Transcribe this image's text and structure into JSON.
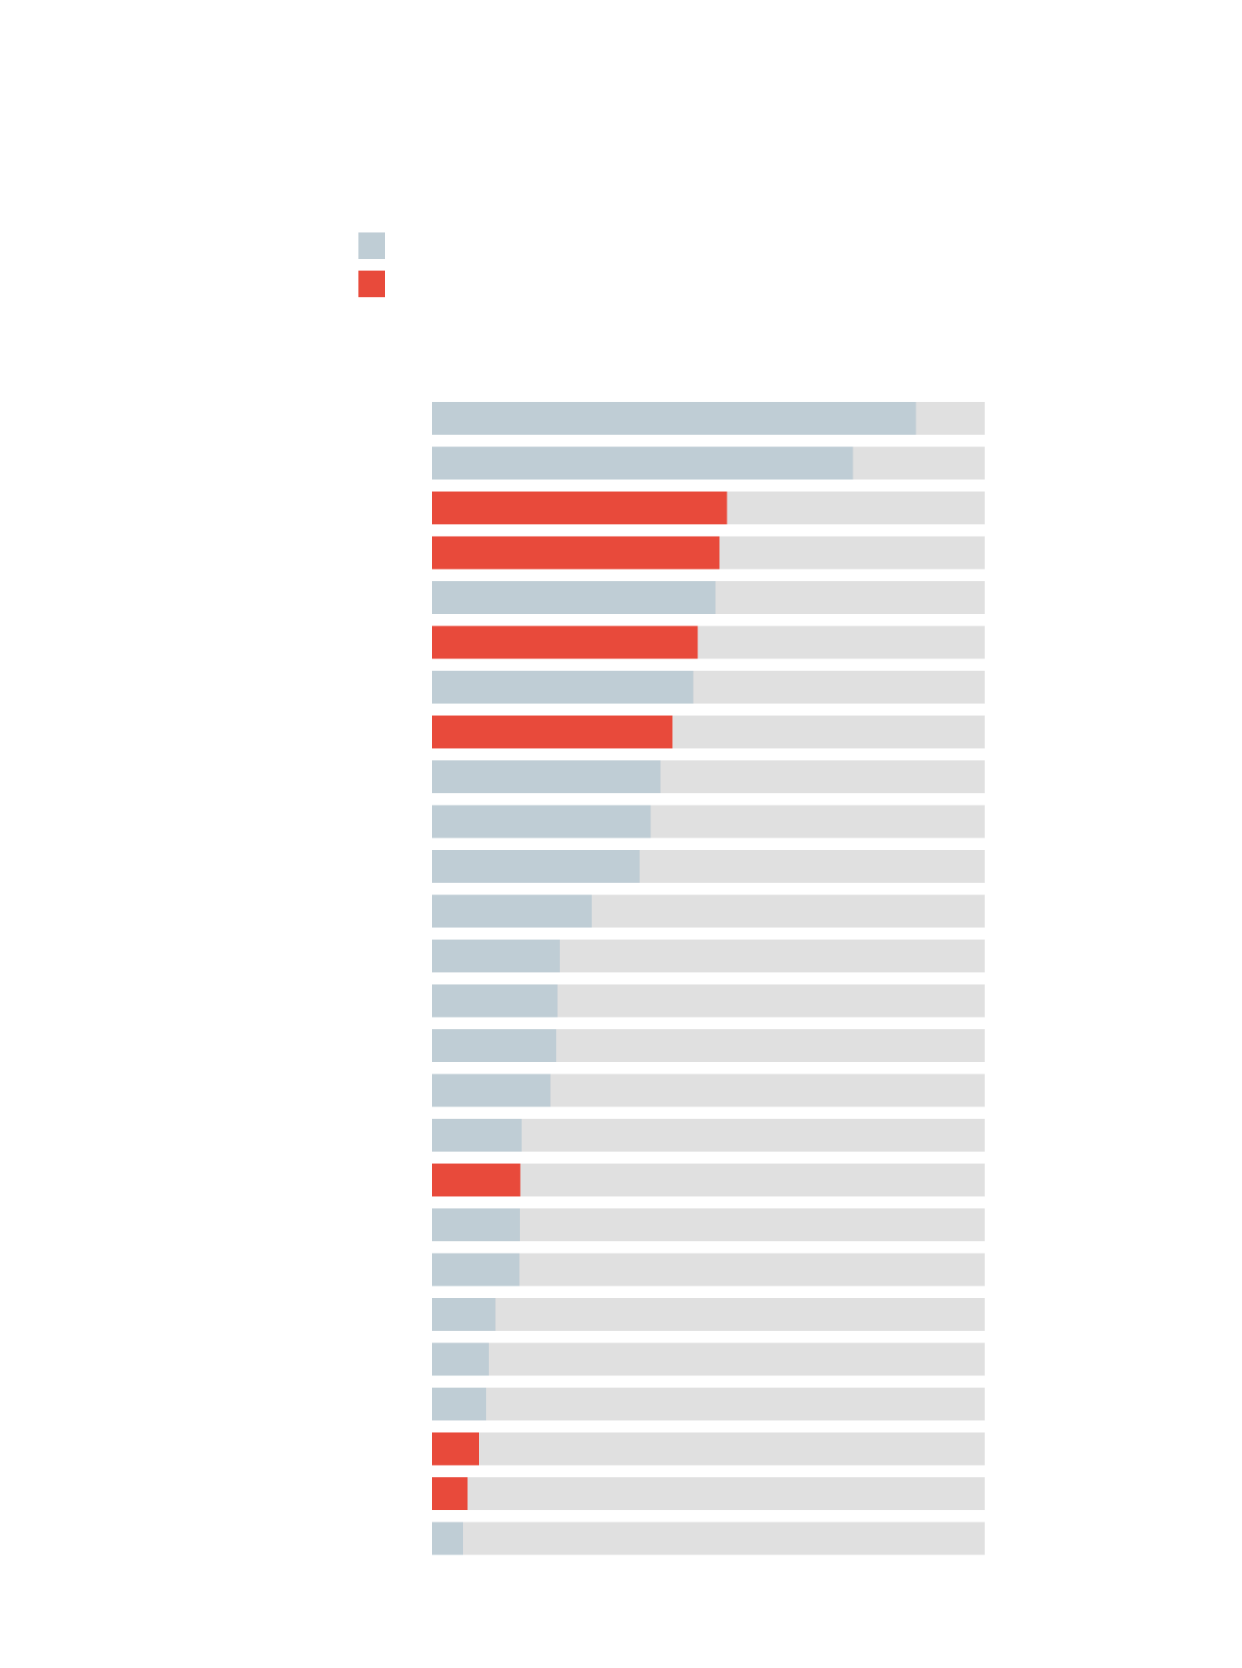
{
  "chart_data": {
    "type": "bar",
    "orientation": "horizontal",
    "title": "",
    "xlabel": "",
    "ylabel": "",
    "xlim": [
      0,
      100
    ],
    "grid": false,
    "legend": {
      "placement": "top-left",
      "entries": [
        {
          "label": "",
          "color": "#bfcdd5"
        },
        {
          "label": "",
          "color": "#e84a3b"
        }
      ]
    },
    "colors": {
      "series_a": "#bfcdd5",
      "series_b": "#e84a3b",
      "track": "#e0e0e0"
    },
    "categories": [
      "",
      "",
      "",
      "",
      "",
      "",
      "",
      "",
      "",
      "",
      "",
      "",
      "",
      "",
      "",
      "",
      "",
      "",
      "",
      "",
      "",
      "",
      "",
      "",
      "",
      ""
    ],
    "values": [
      87.6,
      76.2,
      53.4,
      52.0,
      51.3,
      48.1,
      47.3,
      43.5,
      41.3,
      39.6,
      37.6,
      28.9,
      23.1,
      22.7,
      22.5,
      21.4,
      16.2,
      16.0,
      15.9,
      15.8,
      11.5,
      10.3,
      9.8,
      8.5,
      6.4,
      5.6
    ],
    "series_index": [
      0,
      0,
      1,
      1,
      0,
      1,
      0,
      1,
      0,
      0,
      0,
      0,
      0,
      0,
      0,
      0,
      0,
      1,
      0,
      0,
      0,
      0,
      0,
      1,
      1,
      0
    ]
  }
}
